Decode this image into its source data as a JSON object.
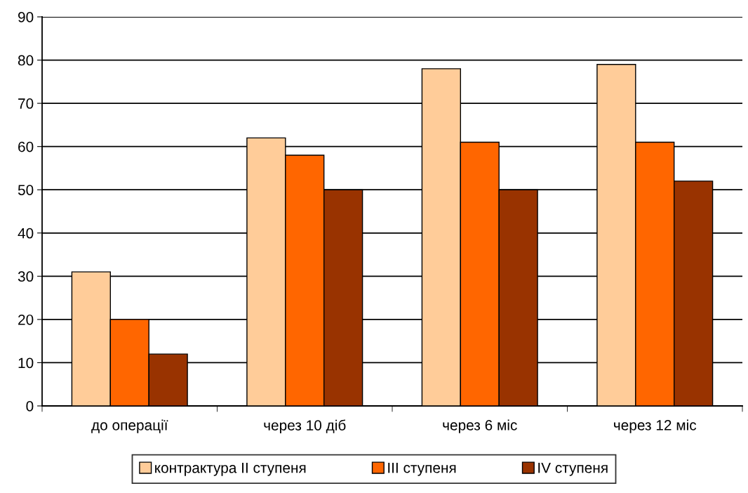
{
  "chart_data": {
    "type": "bar",
    "categories": [
      "до операції",
      "через 10 діб",
      "через 6 міс",
      "через 12 міс"
    ],
    "series": [
      {
        "name": "контрактура II ступеня",
        "color": "#ffcc99",
        "values": [
          31,
          62,
          78,
          79
        ]
      },
      {
        "name": "III ступеня",
        "color": "#ff6600",
        "values": [
          20,
          58,
          61,
          61
        ]
      },
      {
        "name": "IV ступеня",
        "color": "#993300",
        "values": [
          12,
          50,
          50,
          52
        ]
      }
    ],
    "ylim": [
      0,
      90
    ],
    "yticks": [
      0,
      10,
      20,
      30,
      40,
      50,
      60,
      70,
      80,
      90
    ],
    "grid": "y",
    "legend": "bottom"
  }
}
